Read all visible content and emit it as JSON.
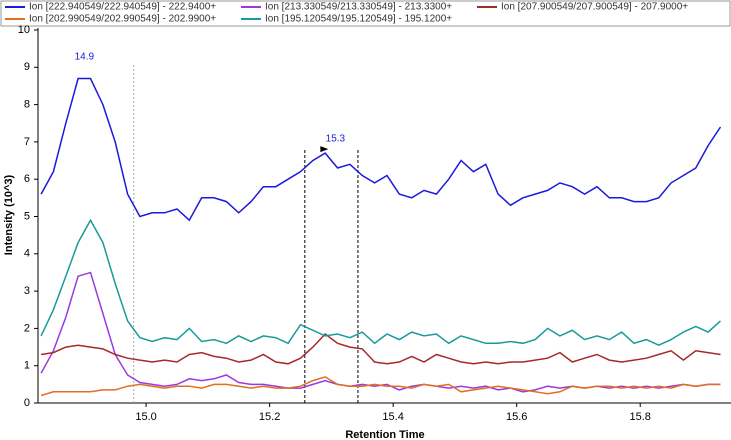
{
  "chart_data": {
    "type": "line",
    "xlabel": "Retention Time",
    "ylabel": "Intensity (10^3)",
    "x": [
      14.83,
      14.85,
      14.87,
      14.89,
      14.91,
      14.93,
      14.95,
      14.97,
      14.99,
      15.01,
      15.03,
      15.05,
      15.07,
      15.09,
      15.11,
      15.13,
      15.15,
      15.17,
      15.19,
      15.21,
      15.23,
      15.25,
      15.27,
      15.29,
      15.31,
      15.33,
      15.35,
      15.37,
      15.39,
      15.41,
      15.43,
      15.45,
      15.47,
      15.49,
      15.51,
      15.53,
      15.55,
      15.57,
      15.59,
      15.61,
      15.63,
      15.65,
      15.67,
      15.69,
      15.71,
      15.73,
      15.75,
      15.77,
      15.79,
      15.81,
      15.83,
      15.85,
      15.87,
      15.89,
      15.91,
      15.93
    ],
    "series": [
      {
        "name": "Ion [222.940549/222.940549] - 222.9400+",
        "color": "#1a1adc",
        "values": [
          5.6,
          6.2,
          7.5,
          8.7,
          8.7,
          8.0,
          7.0,
          5.6,
          5.0,
          5.1,
          5.1,
          5.2,
          4.9,
          5.5,
          5.5,
          5.4,
          5.1,
          5.4,
          5.8,
          5.8,
          6.0,
          6.2,
          6.5,
          6.7,
          6.3,
          6.4,
          6.1,
          5.9,
          6.1,
          5.6,
          5.5,
          5.7,
          5.6,
          6.0,
          6.5,
          6.2,
          6.4,
          5.6,
          5.3,
          5.5,
          5.6,
          5.7,
          5.9,
          5.8,
          5.6,
          5.8,
          5.5,
          5.5,
          5.4,
          5.4,
          5.5,
          5.9,
          6.1,
          6.3,
          6.9,
          7.4
        ]
      },
      {
        "name": "Ion [213.330549/213.330549] - 213.3300+",
        "color": "#9a3ae0",
        "values": [
          0.8,
          1.4,
          2.3,
          3.4,
          3.5,
          2.4,
          1.3,
          0.75,
          0.55,
          0.5,
          0.45,
          0.5,
          0.65,
          0.6,
          0.65,
          0.75,
          0.55,
          0.5,
          0.5,
          0.45,
          0.4,
          0.4,
          0.5,
          0.6,
          0.5,
          0.45,
          0.5,
          0.45,
          0.5,
          0.35,
          0.45,
          0.5,
          0.45,
          0.4,
          0.45,
          0.4,
          0.45,
          0.35,
          0.4,
          0.3,
          0.35,
          0.45,
          0.4,
          0.45,
          0.4,
          0.45,
          0.4,
          0.45,
          0.4,
          0.45,
          0.4,
          0.45,
          0.5,
          0.45,
          0.5,
          0.5
        ]
      },
      {
        "name": "Ion [207.900549/207.900549] - 207.9000+",
        "color": "#a52a2a",
        "values": [
          1.3,
          1.35,
          1.5,
          1.55,
          1.5,
          1.45,
          1.3,
          1.2,
          1.15,
          1.1,
          1.15,
          1.1,
          1.3,
          1.35,
          1.25,
          1.2,
          1.1,
          1.15,
          1.3,
          1.1,
          1.05,
          1.2,
          1.5,
          1.85,
          1.6,
          1.5,
          1.45,
          1.1,
          1.05,
          1.1,
          1.25,
          1.1,
          1.3,
          1.2,
          1.1,
          1.05,
          1.1,
          1.05,
          1.1,
          1.1,
          1.15,
          1.2,
          1.35,
          1.1,
          1.2,
          1.3,
          1.15,
          1.1,
          1.15,
          1.2,
          1.3,
          1.4,
          1.15,
          1.4,
          1.35,
          1.3
        ]
      },
      {
        "name": "Ion [202.990549/202.990549] - 202.9900+",
        "color": "#e07020",
        "values": [
          0.2,
          0.3,
          0.3,
          0.3,
          0.3,
          0.35,
          0.35,
          0.45,
          0.5,
          0.45,
          0.4,
          0.45,
          0.45,
          0.4,
          0.5,
          0.5,
          0.45,
          0.4,
          0.45,
          0.4,
          0.4,
          0.45,
          0.6,
          0.7,
          0.5,
          0.45,
          0.45,
          0.5,
          0.45,
          0.45,
          0.4,
          0.5,
          0.45,
          0.5,
          0.3,
          0.35,
          0.4,
          0.45,
          0.4,
          0.35,
          0.3,
          0.25,
          0.3,
          0.45,
          0.4,
          0.45,
          0.45,
          0.4,
          0.45,
          0.4,
          0.45,
          0.4,
          0.5,
          0.45,
          0.5,
          0.5
        ]
      },
      {
        "name": "Ion [195.120549/195.120549] - 195.1200+",
        "color": "#1a9a9a",
        "values": [
          1.8,
          2.5,
          3.4,
          4.3,
          4.9,
          4.3,
          3.2,
          2.2,
          1.75,
          1.65,
          1.75,
          1.7,
          2.0,
          1.65,
          1.7,
          1.6,
          1.8,
          1.65,
          1.8,
          1.75,
          1.6,
          2.1,
          1.95,
          1.8,
          1.85,
          1.75,
          1.9,
          1.6,
          1.85,
          1.7,
          1.9,
          1.8,
          1.85,
          1.6,
          1.8,
          1.7,
          1.6,
          1.6,
          1.65,
          1.6,
          1.7,
          2.0,
          1.8,
          1.95,
          1.7,
          1.8,
          1.7,
          1.9,
          1.6,
          1.7,
          1.55,
          1.7,
          1.9,
          2.05,
          1.9,
          2.2
        ]
      }
    ],
    "annotations": [
      {
        "label": "14.9",
        "x": 14.9,
        "y": 8.9
      },
      {
        "label": "15.3",
        "x": 15.3,
        "y": 6.7
      }
    ],
    "vlines": [
      14.98,
      15.257,
      15.343
    ],
    "xlim": [
      14.825,
      15.947
    ],
    "xticks": [
      {
        "value": 15.0,
        "label": "15.0"
      },
      15.2,
      15.4,
      15.6,
      15.8
    ],
    "ylim": [
      0,
      10
    ],
    "yticks": [
      0,
      1,
      2,
      3,
      4,
      5,
      6,
      7,
      8,
      9,
      10
    ]
  }
}
